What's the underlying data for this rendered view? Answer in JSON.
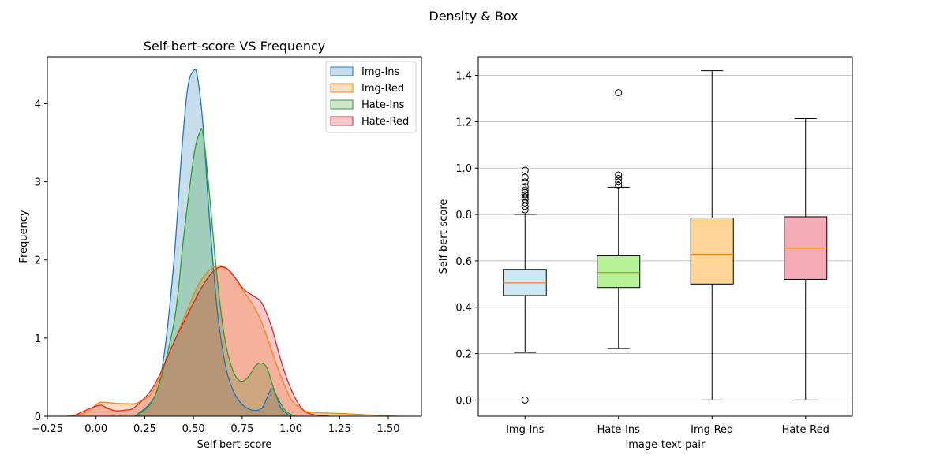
{
  "figure": {
    "title": "Density  &  Box"
  },
  "chart_data": [
    {
      "type": "area",
      "title": "Self-bert-score  VS  Frequency",
      "xlabel": "Self-bert-score",
      "ylabel": "Frequency",
      "xlim": [
        -0.25,
        1.67
      ],
      "ylim": [
        0,
        4.6
      ],
      "xticks": [
        -0.25,
        0.0,
        0.25,
        0.5,
        0.75,
        1.0,
        1.25,
        1.5
      ],
      "xtick_labels": [
        "−0.25",
        "0.00",
        "0.25",
        "0.50",
        "0.75",
        "1.00",
        "1.25",
        "1.50"
      ],
      "yticks": [
        0,
        1,
        2,
        3,
        4
      ],
      "ytick_labels": [
        "0",
        "1",
        "2",
        "3",
        "4"
      ],
      "legend": "top-right",
      "series": [
        {
          "name": "Img-Ins",
          "color": "#1f77b4",
          "fill": "rgba(31,119,180,0.25)",
          "x": [
            0.2,
            0.3,
            0.35,
            0.4,
            0.44,
            0.47,
            0.5,
            0.52,
            0.55,
            0.58,
            0.62,
            0.66,
            0.7,
            0.75,
            0.8,
            0.85,
            0.88,
            0.9,
            0.92,
            0.95,
            1.0
          ],
          "y": [
            0.0,
            0.25,
            0.8,
            2.0,
            3.4,
            4.2,
            4.42,
            4.35,
            3.7,
            2.6,
            1.4,
            0.7,
            0.35,
            0.15,
            0.08,
            0.1,
            0.25,
            0.35,
            0.3,
            0.1,
            0.0
          ]
        },
        {
          "name": "Img-Red",
          "color": "#ff7f0e",
          "fill": "rgba(255,127,14,0.25)",
          "x": [
            -0.15,
            -0.05,
            0.0,
            0.03,
            0.08,
            0.15,
            0.22,
            0.3,
            0.4,
            0.5,
            0.55,
            0.6,
            0.65,
            0.7,
            0.75,
            0.8,
            0.85,
            0.9,
            0.95,
            1.0,
            1.05,
            1.1,
            1.2,
            1.3,
            1.45,
            1.55
          ],
          "y": [
            0.0,
            0.05,
            0.15,
            0.18,
            0.17,
            0.16,
            0.18,
            0.35,
            0.95,
            1.55,
            1.78,
            1.9,
            1.92,
            1.82,
            1.62,
            1.45,
            1.2,
            0.85,
            0.5,
            0.22,
            0.1,
            0.05,
            0.04,
            0.03,
            0.01,
            0.0
          ]
        },
        {
          "name": "Hate-Ins",
          "color": "#2ca02c",
          "fill": "rgba(44,160,44,0.25)",
          "x": [
            0.2,
            0.3,
            0.4,
            0.45,
            0.5,
            0.53,
            0.55,
            0.58,
            0.62,
            0.66,
            0.7,
            0.74,
            0.78,
            0.82,
            0.85,
            0.88,
            0.92,
            0.97,
            1.02
          ],
          "y": [
            0.0,
            0.25,
            1.2,
            2.3,
            3.3,
            3.62,
            3.6,
            2.9,
            1.8,
            1.0,
            0.6,
            0.45,
            0.5,
            0.65,
            0.68,
            0.6,
            0.3,
            0.08,
            0.0
          ]
        },
        {
          "name": "Hate-Red",
          "color": "#d62728",
          "fill": "rgba(214,39,40,0.25)",
          "x": [
            -0.12,
            -0.05,
            0.0,
            0.03,
            0.06,
            0.1,
            0.15,
            0.2,
            0.3,
            0.4,
            0.5,
            0.55,
            0.6,
            0.64,
            0.68,
            0.72,
            0.76,
            0.8,
            0.85,
            0.9,
            0.95,
            1.0,
            1.05,
            1.1,
            1.2
          ],
          "y": [
            0.0,
            0.08,
            0.13,
            0.14,
            0.1,
            0.07,
            0.08,
            0.12,
            0.4,
            0.95,
            1.45,
            1.68,
            1.85,
            1.91,
            1.87,
            1.75,
            1.62,
            1.55,
            1.45,
            1.15,
            0.7,
            0.35,
            0.12,
            0.03,
            0.0
          ]
        }
      ]
    },
    {
      "type": "box",
      "xlabel": "image-text-pair",
      "ylabel": "Self-bert-score",
      "ylim": [
        -0.07,
        1.48
      ],
      "yticks": [
        0.0,
        0.2,
        0.4,
        0.6,
        0.8,
        1.0,
        1.2,
        1.4
      ],
      "ytick_labels": [
        "0.0",
        "0.2",
        "0.4",
        "0.6",
        "0.8",
        "1.0",
        "1.2",
        "1.4"
      ],
      "grid": "y",
      "median_color": "#ff7f0e",
      "boxes": [
        {
          "category": "Img-Ins",
          "color": "#cde8f5",
          "whisker_low": 0.205,
          "q1": 0.45,
          "median": 0.505,
          "q3": 0.563,
          "whisker_high": 0.8,
          "outliers": [
            0.0,
            0.82,
            0.835,
            0.85,
            0.865,
            0.875,
            0.885,
            0.895,
            0.905,
            0.92,
            0.94,
            0.96,
            0.99
          ]
        },
        {
          "category": "Hate-Ins",
          "color": "#b5f396",
          "whisker_low": 0.222,
          "q1": 0.485,
          "median": 0.55,
          "q3": 0.622,
          "whisker_high": 0.918,
          "outliers": [
            0.925,
            0.94,
            0.955,
            0.97,
            1.325
          ]
        },
        {
          "category": "Img-Red",
          "color": "#fed597",
          "whisker_low": 0.0,
          "q1": 0.5,
          "median": 0.628,
          "q3": 0.785,
          "whisker_high": 1.42,
          "outliers": []
        },
        {
          "category": "Hate-Red",
          "color": "#f4acb7",
          "whisker_low": 0.0,
          "q1": 0.52,
          "median": 0.655,
          "q3": 0.79,
          "whisker_high": 1.213,
          "outliers": []
        }
      ]
    }
  ]
}
